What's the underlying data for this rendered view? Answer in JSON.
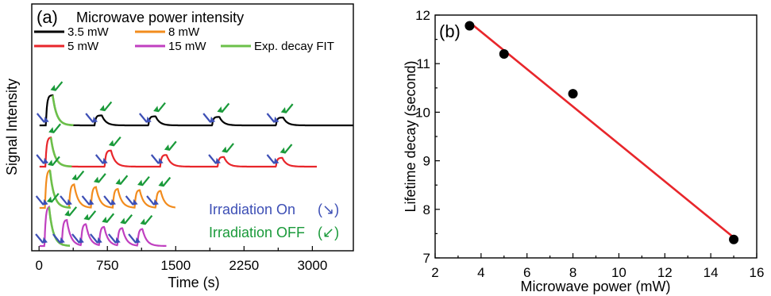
{
  "chart_data": [
    {
      "panel_label": "(a)",
      "type": "line",
      "xlabel": "Time (s)",
      "ylabel": "Signal Intensity",
      "xlim": [
        -80,
        3450
      ],
      "xticks": [
        "0",
        "750",
        "1500",
        "2250",
        "3000"
      ],
      "legend_title": "Microwave power intensity",
      "legend_placement": "top-left",
      "series": [
        {
          "name": "3.5 mW",
          "color": "#000000",
          "on_times": [
            75,
            610,
            1200,
            1900,
            2600
          ],
          "off_times": [
            150,
            690,
            1280,
            1980,
            2680
          ],
          "rel_peak": [
            1.0,
            0.33,
            0.3,
            0.28,
            0.26
          ],
          "end_time": 3450
        },
        {
          "name": "8 mW",
          "color": "#f28c1e",
          "on_times": [
            65,
            330,
            570,
            810,
            1050,
            1280
          ],
          "off_times": [
            120,
            385,
            625,
            865,
            1105,
            1335
          ],
          "rel_peak": [
            1.0,
            0.62,
            0.55,
            0.5,
            0.47,
            0.45
          ],
          "end_time": 1500
        },
        {
          "name": "5 mW",
          "color": "#e8262b",
          "on_times": [
            70,
            720,
            1330,
            1960,
            2600
          ],
          "off_times": [
            130,
            790,
            1400,
            2030,
            2670
          ],
          "rel_peak": [
            1.0,
            0.55,
            0.4,
            0.33,
            0.3
          ],
          "end_time": 3050
        },
        {
          "name": "15 mW",
          "color": "#c040c0",
          "on_times": [
            60,
            250,
            460,
            660,
            860,
            1080
          ],
          "off_times": [
            110,
            305,
            515,
            715,
            915,
            1135
          ],
          "rel_peak": [
            1.0,
            0.65,
            0.55,
            0.48,
            0.45,
            0.43
          ],
          "end_time": 1400
        },
        {
          "name": "Exp. decay FIT",
          "color": "#6cc04a"
        }
      ],
      "annotations": [
        {
          "text": "Irradiation On",
          "symbol": "(↘)",
          "color": "#3d4fb5"
        },
        {
          "text": "Irradiation OFF",
          "symbol": "(↙)",
          "color": "#1a9a3a"
        }
      ]
    },
    {
      "panel_label": "(b)",
      "type": "scatter",
      "xlabel": "Microwave power (mW)",
      "ylabel": "Lifetime decay (second)",
      "xlim": [
        2,
        16
      ],
      "ylim": [
        7,
        12
      ],
      "xticks": [
        "2",
        "4",
        "6",
        "8",
        "10",
        "12",
        "14",
        "16"
      ],
      "yticks": [
        "7",
        "8",
        "9",
        "10",
        "11",
        "12"
      ],
      "x": [
        3.5,
        5,
        8,
        15
      ],
      "y": [
        11.78,
        11.2,
        10.38,
        7.38
      ],
      "fit_line": {
        "x": [
          3.5,
          15
        ],
        "y": [
          11.85,
          7.42
        ],
        "color": "#e8262b"
      },
      "marker_color": "#000000"
    }
  ]
}
